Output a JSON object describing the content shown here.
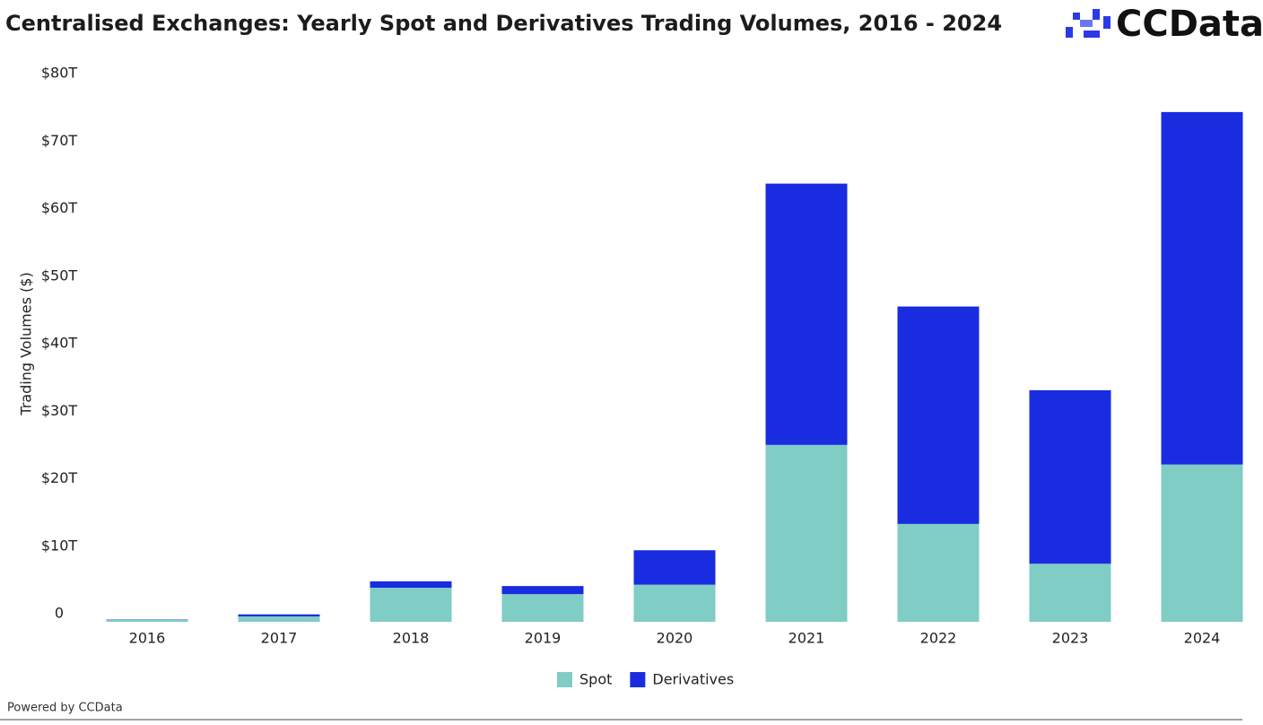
{
  "chart_data": {
    "type": "stacked_bar",
    "title": "Centralised Exchanges: Yearly Spot and Derivatives Trading Volumes, 2016 - 2024",
    "y_label": "Trading Volumes ($)",
    "categories": [
      "2016",
      "2017",
      "2018",
      "2019",
      "2020",
      "2021",
      "2022",
      "2023",
      "2024"
    ],
    "series": [
      {
        "name": "Spot",
        "color": "#7fcdc4",
        "values": [
          0.3,
          0.8,
          5.05,
          4.1,
          5.5,
          26.2,
          14.5,
          8.6,
          23.3
        ]
      },
      {
        "name": "Derivatives",
        "color": "#1a2ce0",
        "values": [
          0.05,
          0.3,
          0.95,
          1.2,
          5.1,
          38.7,
          32.2,
          25.7,
          52.2
        ]
      }
    ],
    "ylim": [
      0,
      80
    ],
    "yticks": [
      0,
      {
        "value": 10,
        "label": "$10T"
      },
      {
        "value": 20,
        "label": "$20T"
      },
      {
        "value": 30,
        "label": "$30T"
      },
      {
        "value": 40,
        "label": "$40T"
      },
      {
        "value": 50,
        "label": "$50T"
      },
      {
        "value": 60,
        "label": "$60T"
      },
      {
        "value": 70,
        "label": "$70T"
      },
      {
        "value": 80,
        "label": "$80T"
      }
    ],
    "grid": false,
    "legend": "bottom"
  },
  "logo": "CCData",
  "footer": "Powered by CCData"
}
